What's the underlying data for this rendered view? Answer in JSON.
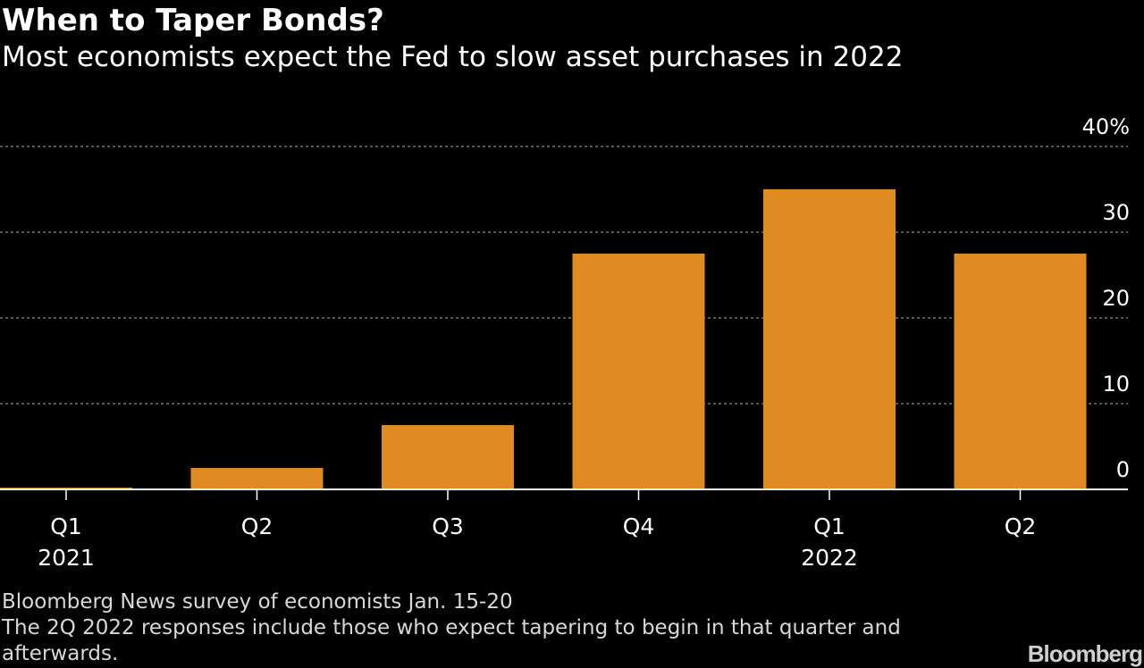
{
  "header": {
    "title": "When to Taper Bonds?",
    "subtitle": "Most economists expect the Fed to slow asset purchases in 2022"
  },
  "footer": {
    "source": "Bloomberg News survey of economists Jan. 15-20",
    "note": "The 2Q 2022 responses include those who expect tapering to begin in that quarter and afterwards.",
    "logo": "Bloomberg"
  },
  "colors": {
    "background": "#000000",
    "bar": "#e08a22",
    "grid": "#8a8a8a",
    "axis": "#ffffff",
    "text": "#ffffff",
    "footer_text": "#d8d8d8"
  },
  "chart_data": {
    "type": "bar",
    "categories": [
      "Q1",
      "Q2",
      "Q3",
      "Q4",
      "Q1",
      "Q2"
    ],
    "year_labels": [
      {
        "label": "2021",
        "under_category_index": 0
      },
      {
        "label": "2022",
        "under_category_index": 4
      }
    ],
    "values": [
      0.2,
      2.5,
      7.5,
      27.5,
      35,
      27.5
    ],
    "ylim": [
      0,
      40
    ],
    "yticks": [
      0,
      10,
      20,
      30,
      40
    ],
    "ytick_labels": [
      "0",
      "10",
      "20",
      "30",
      "40%"
    ],
    "y_axis_side": "right",
    "grid": true,
    "legend": "none",
    "xlabel": "",
    "ylabel": ""
  }
}
